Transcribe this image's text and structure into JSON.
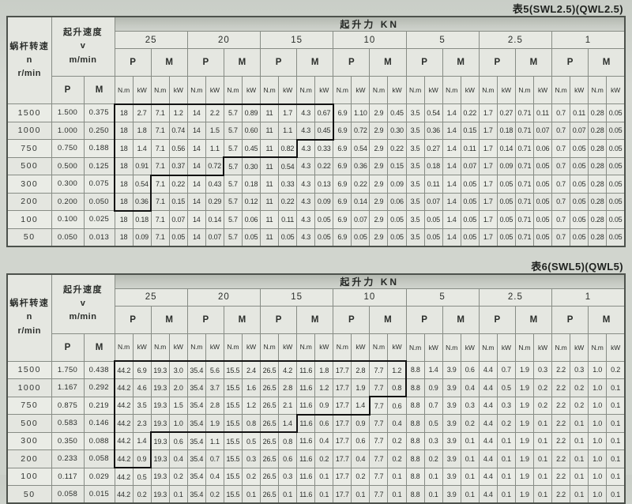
{
  "tables": [
    {
      "title": "表5(SWL2.5)(QWL2.5)",
      "corner_header": {
        "line1": "蜗杆转速",
        "line2": "n",
        "line3": "r/min"
      },
      "speed_header": {
        "line1": "起升速度",
        "line2": "v",
        "line3": "m/min",
        "sub_p": "P",
        "sub_m": "M"
      },
      "force_header": "起升力 KN",
      "loads": [
        "25",
        "20",
        "15",
        "10",
        "5",
        "2.5",
        "1"
      ],
      "pm_labels": [
        "P",
        "M"
      ],
      "unit_labels": [
        "N.m",
        "kW"
      ],
      "rows": [
        {
          "n": "1500",
          "v_p": "1.500",
          "v_m": "0.375",
          "step": 12,
          "vals": [
            "18",
            "2.7",
            "7.1",
            "1.2",
            "14",
            "2.2",
            "5.7",
            "0.89",
            "11",
            "1.7",
            "4.3",
            "0.67",
            "6.9",
            "1.10",
            "2.9",
            "0.45",
            "3.5",
            "0.54",
            "1.4",
            "0.22",
            "1.7",
            "0.27",
            "0.71",
            "0.11",
            "0.7",
            "0.11",
            "0.28",
            "0.05"
          ]
        },
        {
          "n": "1000",
          "v_p": "1.000",
          "v_m": "0.250",
          "step": 12,
          "vals": [
            "18",
            "1.8",
            "7.1",
            "0.74",
            "14",
            "1.5",
            "5.7",
            "0.60",
            "11",
            "1.1",
            "4.3",
            "0.45",
            "6.9",
            "0.72",
            "2.9",
            "0.30",
            "3.5",
            "0.36",
            "1.4",
            "0.15",
            "1.7",
            "0.18",
            "0.71",
            "0.07",
            "0.7",
            "0.07",
            "0.28",
            "0.05"
          ]
        },
        {
          "n": "750",
          "v_p": "0.750",
          "v_m": "0.188",
          "step": 10,
          "vals": [
            "18",
            "1.4",
            "7.1",
            "0.56",
            "14",
            "1.1",
            "5.7",
            "0.45",
            "11",
            "0.82",
            "4.3",
            "0.33",
            "6.9",
            "0.54",
            "2.9",
            "0.22",
            "3.5",
            "0.27",
            "1.4",
            "0.11",
            "1.7",
            "0.14",
            "0.71",
            "0.06",
            "0.7",
            "0.05",
            "0.28",
            "0.05"
          ]
        },
        {
          "n": "500",
          "v_p": "0.500",
          "v_m": "0.125",
          "step": 6,
          "vals": [
            "18",
            "0.91",
            "7.1",
            "0.37",
            "14",
            "0.72",
            "5.7",
            "0.30",
            "11",
            "0.54",
            "4.3",
            "0.22",
            "6.9",
            "0.36",
            "2.9",
            "0.15",
            "3.5",
            "0.18",
            "1.4",
            "0.07",
            "1.7",
            "0.09",
            "0.71",
            "0.05",
            "0.7",
            "0.05",
            "0.28",
            "0.05"
          ]
        },
        {
          "n": "300",
          "v_p": "0.300",
          "v_m": "0.075",
          "step": 2,
          "vals": [
            "18",
            "0.54",
            "7.1",
            "0.22",
            "14",
            "0.43",
            "5.7",
            "0.18",
            "11",
            "0.33",
            "4.3",
            "0.13",
            "6.9",
            "0.22",
            "2.9",
            "0.09",
            "3.5",
            "0.11",
            "1.4",
            "0.05",
            "1.7",
            "0.05",
            "0.71",
            "0.05",
            "0.7",
            "0.05",
            "0.28",
            "0.05"
          ]
        },
        {
          "n": "200",
          "v_p": "0.200",
          "v_m": "0.050",
          "step": 2,
          "vals": [
            "18",
            "0.36",
            "7.1",
            "0.15",
            "14",
            "0.29",
            "5.7",
            "0.12",
            "11",
            "0.22",
            "4.3",
            "0.09",
            "6.9",
            "0.14",
            "2.9",
            "0.06",
            "3.5",
            "0.07",
            "1.4",
            "0.05",
            "1.7",
            "0.05",
            "0.71",
            "0.05",
            "0.7",
            "0.05",
            "0.28",
            "0.05"
          ]
        },
        {
          "n": "100",
          "v_p": "0.100",
          "v_m": "0.025",
          "step": 0,
          "vals": [
            "18",
            "0.18",
            "7.1",
            "0.07",
            "14",
            "0.14",
            "5.7",
            "0.06",
            "11",
            "0.11",
            "4.3",
            "0.05",
            "6.9",
            "0.07",
            "2.9",
            "0.05",
            "3.5",
            "0.05",
            "1.4",
            "0.05",
            "1.7",
            "0.05",
            "0.71",
            "0.05",
            "0.7",
            "0.05",
            "0.28",
            "0.05"
          ]
        },
        {
          "n": "50",
          "v_p": "0.050",
          "v_m": "0.013",
          "step": 0,
          "vals": [
            "18",
            "0.09",
            "7.1",
            "0.05",
            "14",
            "0.07",
            "5.7",
            "0.05",
            "11",
            "0.05",
            "4.3",
            "0.05",
            "6.9",
            "0.05",
            "2.9",
            "0.05",
            "3.5",
            "0.05",
            "1.4",
            "0.05",
            "1.7",
            "0.05",
            "0.71",
            "0.05",
            "0.7",
            "0.05",
            "0.28",
            "0.05"
          ]
        }
      ]
    },
    {
      "title": "表6(SWL5)(QWL5)",
      "corner_header": {
        "line1": "蜗杆转速",
        "line2": "n",
        "line3": "r/min"
      },
      "speed_header": {
        "line1": "起升速度",
        "line2": "v",
        "line3": "m/min",
        "sub_p": "P",
        "sub_m": "M"
      },
      "force_header": "起升力 KN",
      "loads": [
        "25",
        "20",
        "15",
        "10",
        "5",
        "2.5",
        "1"
      ],
      "pm_labels": [
        "P",
        "M"
      ],
      "unit_labels": [
        "N.m",
        "kW"
      ],
      "rows": [
        {
          "n": "1500",
          "v_p": "1.750",
          "v_m": "0.438",
          "step": 16,
          "vals": [
            "44.2",
            "6.9",
            "19.3",
            "3.0",
            "35.4",
            "5.6",
            "15.5",
            "2.4",
            "26.5",
            "4.2",
            "11.6",
            "1.8",
            "17.7",
            "2.8",
            "7.7",
            "1.2",
            "8.8",
            "1.4",
            "3.9",
            "0.6",
            "4.4",
            "0.7",
            "1.9",
            "0.3",
            "2.2",
            "0.3",
            "1.0",
            "0.2"
          ]
        },
        {
          "n": "1000",
          "v_p": "1.167",
          "v_m": "0.292",
          "step": 16,
          "vals": [
            "44.2",
            "4.6",
            "19.3",
            "2.0",
            "35.4",
            "3.7",
            "15.5",
            "1.6",
            "26.5",
            "2.8",
            "11.6",
            "1.2",
            "17.7",
            "1.9",
            "7.7",
            "0.8",
            "8.8",
            "0.9",
            "3.9",
            "0.4",
            "4.4",
            "0.5",
            "1.9",
            "0.2",
            "2.2",
            "0.2",
            "1.0",
            "0.1"
          ]
        },
        {
          "n": "750",
          "v_p": "0.875",
          "v_m": "0.219",
          "step": 14,
          "vals": [
            "44.2",
            "3.5",
            "19.3",
            "1.5",
            "35.4",
            "2.8",
            "15.5",
            "1.2",
            "26.5",
            "2.1",
            "11.6",
            "0.9",
            "17.7",
            "1.4",
            "7.7",
            "0.6",
            "8.8",
            "0.7",
            "3.9",
            "0.3",
            "4.4",
            "0.3",
            "1.9",
            "0.2",
            "2.2",
            "0.2",
            "1.0",
            "0.1"
          ]
        },
        {
          "n": "500",
          "v_p": "0.583",
          "v_m": "0.146",
          "step": 10,
          "vals": [
            "44.2",
            "2.3",
            "19.3",
            "1.0",
            "35.4",
            "1.9",
            "15.5",
            "0.8",
            "26.5",
            "1.4",
            "11.6",
            "0.6",
            "17.7",
            "0.9",
            "7.7",
            "0.4",
            "8.8",
            "0.5",
            "3.9",
            "0.2",
            "4.4",
            "0.2",
            "1.9",
            "0.1",
            "2.2",
            "0.1",
            "1.0",
            "0.1"
          ]
        },
        {
          "n": "300",
          "v_p": "0.350",
          "v_m": "0.088",
          "step": 2,
          "vals": [
            "44.2",
            "1.4",
            "19.3",
            "0.6",
            "35.4",
            "1.1",
            "15.5",
            "0.5",
            "26.5",
            "0.8",
            "11.6",
            "0.4",
            "17.7",
            "0.6",
            "7.7",
            "0.2",
            "8.8",
            "0.3",
            "3.9",
            "0.1",
            "4.4",
            "0.1",
            "1.9",
            "0.1",
            "2.2",
            "0.1",
            "1.0",
            "0.1"
          ]
        },
        {
          "n": "200",
          "v_p": "0.233",
          "v_m": "0.058",
          "step": 2,
          "vals": [
            "44.2",
            "0.9",
            "19.3",
            "0.4",
            "35.4",
            "0.7",
            "15.5",
            "0.3",
            "26.5",
            "0.6",
            "11.6",
            "0.2",
            "17.7",
            "0.4",
            "7.7",
            "0.2",
            "8.8",
            "0.2",
            "3.9",
            "0.1",
            "4.4",
            "0.1",
            "1.9",
            "0.1",
            "2.2",
            "0.1",
            "1.0",
            "0.1"
          ]
        },
        {
          "n": "100",
          "v_p": "0.117",
          "v_m": "0.029",
          "step": 0,
          "vals": [
            "44.2",
            "0.5",
            "19.3",
            "0.2",
            "35.4",
            "0.4",
            "15.5",
            "0.2",
            "26.5",
            "0.3",
            "11.6",
            "0.1",
            "17.7",
            "0.2",
            "7.7",
            "0.1",
            "8.8",
            "0.1",
            "3.9",
            "0.1",
            "4.4",
            "0.1",
            "1.9",
            "0.1",
            "2.2",
            "0.1",
            "1.0",
            "0.1"
          ]
        },
        {
          "n": "50",
          "v_p": "0.058",
          "v_m": "0.015",
          "step": 0,
          "vals": [
            "44.2",
            "0.2",
            "19.3",
            "0.1",
            "35.4",
            "0.2",
            "15.5",
            "0.1",
            "26.5",
            "0.1",
            "11.6",
            "0.1",
            "17.7",
            "0.1",
            "7.7",
            "0.1",
            "8.8",
            "0.1",
            "3.9",
            "0.1",
            "4.4",
            "0.1",
            "1.9",
            "0.1",
            "2.2",
            "0.1",
            "1.0",
            "0.1"
          ]
        }
      ]
    }
  ]
}
